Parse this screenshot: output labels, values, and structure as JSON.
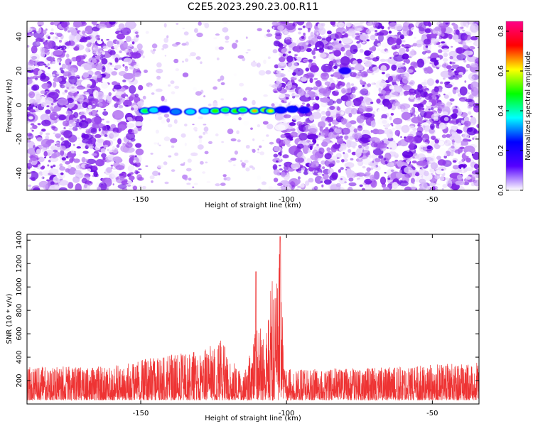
{
  "figure_title": "C2E5.2023.290.23.00.R11",
  "chart_data": [
    {
      "type": "heatmap",
      "title": "C2E5.2023.290.23.00.R11",
      "xlabel": "Height of straight line (km)",
      "ylabel": "Frequency (Hz)",
      "xlim": [
        -189,
        -34
      ],
      "ylim": [
        -50,
        49
      ],
      "xticks": [
        -150,
        -100,
        -50
      ],
      "xtick_labels": [
        "-150",
        "-100",
        "-50"
      ],
      "yticks": [
        -40,
        -20,
        0,
        20,
        40
      ],
      "ytick_labels": [
        "-40",
        "-20",
        "0",
        "20",
        "40"
      ],
      "grid": false,
      "colorbar": {
        "label": "Normalized spectral amplitude",
        "range": [
          0.0,
          0.85
        ],
        "ticks": [
          0.0,
          0.2,
          0.4,
          0.6,
          0.8
        ],
        "tick_labels": [
          "0.0",
          "0.2",
          "0.4",
          "0.6",
          "0.8"
        ],
        "colormap": [
          "#ffffff",
          "#5500ff",
          "#0000ff",
          "#00ffff",
          "#00ff00",
          "#ffff00",
          "#ff0000",
          "#ff0088"
        ]
      },
      "background_noise": {
        "x_range": [
          -189,
          -34
        ],
        "level": 0.12,
        "quiet_region": [
          -150,
          -104
        ],
        "quiet_level": 0.05
      },
      "signal_blobs": [
        {
          "x": -148.5,
          "y": -3.5,
          "value": 0.45
        },
        {
          "x": -145.5,
          "y": -3.0,
          "value": 0.35
        },
        {
          "x": -142.0,
          "y": -2.5,
          "value": 0.2
        },
        {
          "x": -138.0,
          "y": -4.0,
          "value": 0.3
        },
        {
          "x": -133.0,
          "y": -4.0,
          "value": 0.35
        },
        {
          "x": -128.0,
          "y": -3.5,
          "value": 0.35
        },
        {
          "x": -124.5,
          "y": -3.5,
          "value": 0.5
        },
        {
          "x": -121.0,
          "y": -3.0,
          "value": 0.45
        },
        {
          "x": -117.5,
          "y": -3.5,
          "value": 0.5
        },
        {
          "x": -115.0,
          "y": -3.0,
          "value": 0.45
        },
        {
          "x": -111.0,
          "y": -3.5,
          "value": 0.65
        },
        {
          "x": -107.5,
          "y": -3.0,
          "value": 0.55
        },
        {
          "x": -105.5,
          "y": -3.5,
          "value": 0.6
        },
        {
          "x": -102.0,
          "y": -3.0,
          "value": 0.25
        },
        {
          "x": -98.0,
          "y": -2.5,
          "value": 0.25
        },
        {
          "x": -94.0,
          "y": -3.0,
          "value": 0.2
        },
        {
          "x": -80.0,
          "y": 20.0,
          "value": 0.2
        }
      ]
    },
    {
      "type": "line",
      "xlabel": "Height of straight line (km)",
      "ylabel": "SNR (10 * v/v)",
      "xlim": [
        -189,
        -34
      ],
      "ylim": [
        0,
        1450
      ],
      "xticks": [
        -150,
        -100,
        -50
      ],
      "xtick_labels": [
        "-150",
        "-100",
        "-50"
      ],
      "yticks": [
        200,
        400,
        600,
        800,
        1000,
        1200,
        1400
      ],
      "ytick_labels": [
        "200",
        "400",
        "600",
        "800",
        "1000",
        "1200",
        "1400"
      ],
      "grid": false,
      "color": "#ee3333",
      "baseline_noise": {
        "mean": 130,
        "spread": 150
      },
      "envelope": [
        {
          "x": -189,
          "y": 320
        },
        {
          "x": -160,
          "y": 320
        },
        {
          "x": -150,
          "y": 380
        },
        {
          "x": -140,
          "y": 420
        },
        {
          "x": -130,
          "y": 450
        },
        {
          "x": -122,
          "y": 550
        },
        {
          "x": -118,
          "y": 380
        },
        {
          "x": -115,
          "y": 220
        },
        {
          "x": -112,
          "y": 480
        },
        {
          "x": -110,
          "y": 680
        },
        {
          "x": -108,
          "y": 620
        },
        {
          "x": -106,
          "y": 800
        },
        {
          "x": -105,
          "y": 1100
        },
        {
          "x": -104,
          "y": 900
        },
        {
          "x": -103,
          "y": 1150
        },
        {
          "x": -102,
          "y": 1430
        },
        {
          "x": -101,
          "y": 300
        },
        {
          "x": -90,
          "y": 300
        },
        {
          "x": -60,
          "y": 320
        },
        {
          "x": -34,
          "y": 360
        }
      ],
      "peaks": [
        {
          "x": -110.5,
          "y": 1130
        },
        {
          "x": -102.2,
          "y": 1430
        }
      ]
    }
  ]
}
